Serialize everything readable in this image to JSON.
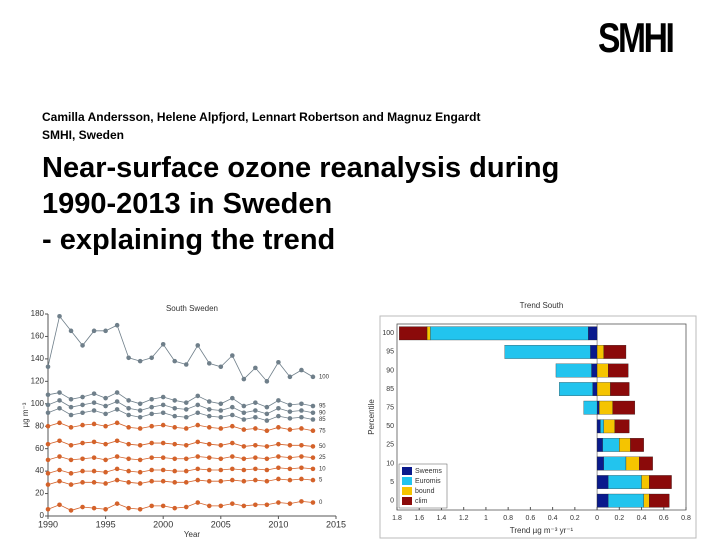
{
  "logo": "SMHI",
  "authors": "Camilla Andersson, Helene Alpfjord, Lennart Robertson and Magnuz Engardt",
  "affiliation": "SMHI, Sweden",
  "title": [
    "Near-surface ozone reanalysis during",
    "1990-2013 in Sweden",
    "- explaining the trend"
  ],
  "chart_data": [
    {
      "type": "line",
      "title": "South Sweden",
      "xlabel": "Year",
      "ylabel": "µg m⁻³",
      "x": [
        1990,
        1991,
        1992,
        1993,
        1994,
        1995,
        1996,
        1997,
        1998,
        1999,
        2000,
        2001,
        2002,
        2003,
        2004,
        2005,
        2006,
        2007,
        2008,
        2009,
        2010,
        2011,
        2012,
        2013
      ],
      "xlim": [
        1990,
        2015
      ],
      "xticks": [
        1990,
        1995,
        2000,
        2005,
        2010,
        2015
      ],
      "ylim": [
        0,
        180
      ],
      "yticks": [
        0,
        20,
        40,
        60,
        80,
        100,
        120,
        140,
        160,
        180
      ],
      "grid": false,
      "series": [
        {
          "name": "100",
          "color": "#6f7f8a",
          "values": [
            133,
            178,
            165,
            152,
            165,
            165,
            170,
            141,
            138,
            141,
            153,
            138,
            135,
            152,
            136,
            133,
            143,
            122,
            132,
            120,
            137,
            124,
            130,
            124
          ]
        },
        {
          "name": "95",
          "color": "#6f7f8a",
          "values": [
            108,
            110,
            104,
            106,
            109,
            105,
            110,
            103,
            100,
            104,
            106,
            103,
            101,
            107,
            102,
            100,
            105,
            98,
            101,
            97,
            103,
            99,
            100,
            98
          ]
        },
        {
          "name": "90",
          "color": "#6f7f8a",
          "values": [
            99,
            103,
            97,
            99,
            101,
            98,
            102,
            96,
            94,
            97,
            99,
            96,
            95,
            99,
            95,
            94,
            97,
            92,
            94,
            91,
            96,
            93,
            94,
            92
          ]
        },
        {
          "name": "85",
          "color": "#6f7f8a",
          "values": [
            92,
            96,
            90,
            92,
            94,
            91,
            95,
            90,
            88,
            91,
            92,
            89,
            88,
            92,
            89,
            88,
            90,
            86,
            88,
            85,
            89,
            87,
            88,
            86
          ]
        },
        {
          "name": "75",
          "color": "#d4622a",
          "values": [
            80,
            83,
            79,
            81,
            82,
            80,
            83,
            79,
            78,
            80,
            81,
            79,
            78,
            81,
            79,
            78,
            80,
            77,
            78,
            76,
            79,
            77,
            78,
            76
          ]
        },
        {
          "name": "50",
          "color": "#d4622a",
          "values": [
            64,
            67,
            63,
            65,
            66,
            64,
            67,
            64,
            63,
            65,
            65,
            64,
            63,
            66,
            64,
            63,
            65,
            62,
            63,
            62,
            64,
            63,
            63,
            62
          ]
        },
        {
          "name": "25",
          "color": "#d4622a",
          "values": [
            50,
            53,
            50,
            51,
            52,
            50,
            53,
            51,
            50,
            52,
            52,
            51,
            51,
            53,
            52,
            51,
            53,
            51,
            52,
            51,
            53,
            52,
            53,
            52
          ]
        },
        {
          "name": "10",
          "color": "#d4622a",
          "values": [
            38,
            41,
            38,
            40,
            40,
            39,
            42,
            40,
            39,
            41,
            41,
            40,
            40,
            42,
            41,
            41,
            42,
            41,
            42,
            41,
            43,
            42,
            43,
            42
          ]
        },
        {
          "name": "5",
          "color": "#d4622a",
          "values": [
            28,
            31,
            28,
            30,
            30,
            29,
            32,
            30,
            29,
            31,
            31,
            30,
            30,
            32,
            31,
            31,
            32,
            31,
            32,
            31,
            33,
            32,
            33,
            32
          ]
        },
        {
          "name": "0",
          "color": "#d4622a",
          "values": [
            6,
            10,
            5,
            8,
            7,
            6,
            11,
            7,
            6,
            9,
            9,
            7,
            8,
            12,
            9,
            9,
            11,
            9,
            10,
            10,
            12,
            11,
            13,
            12
          ]
        }
      ]
    },
    {
      "type": "hbar-stacked",
      "title": "Trend South",
      "xlabel": "Trend µg m⁻³ yr⁻¹",
      "ylabel": "Percentile",
      "categories": [
        "100",
        "95",
        "90",
        "85",
        "75",
        "50",
        "25",
        "10",
        "5",
        "0"
      ],
      "xlim": [
        -1.8,
        0.8
      ],
      "xticks": [
        {
          "value": -1.8,
          "label": "1.8"
        },
        {
          "value": -1.6,
          "label": "1.6"
        },
        {
          "value": -1.4,
          "label": "1.4"
        },
        {
          "value": -1.2,
          "label": "1.2"
        },
        {
          "value": -1,
          "label": "1"
        },
        {
          "value": -0.8,
          "label": "0.8"
        },
        {
          "value": -0.6,
          "label": "0.6"
        },
        {
          "value": -0.4,
          "label": "0.4"
        },
        {
          "value": -0.2,
          "label": "0.2"
        },
        0,
        0.2,
        0.4,
        0.6,
        0.8
      ],
      "legend": "lower left",
      "series": [
        {
          "name": "Sweems",
          "color": "#0a1a8c",
          "values": [
            -0.08,
            -0.06,
            -0.05,
            -0.04,
            0.02,
            0.03,
            0.05,
            0.06,
            0.1,
            0.1
          ]
        },
        {
          "name": "Euromis",
          "color": "#22c4ee",
          "values": [
            -1.42,
            -0.77,
            -0.32,
            -0.3,
            -0.12,
            0.03,
            0.15,
            0.2,
            0.3,
            0.32
          ]
        },
        {
          "name": "bound",
          "color": "#f5c400",
          "values": [
            -0.03,
            0.06,
            0.1,
            0.12,
            0.12,
            0.1,
            0.1,
            0.12,
            0.07,
            0.05
          ]
        },
        {
          "name": "clim",
          "color": "#8b0a0a",
          "values": [
            -0.25,
            0.2,
            0.18,
            0.17,
            0.2,
            0.13,
            0.12,
            0.12,
            0.2,
            0.18
          ]
        }
      ]
    }
  ]
}
